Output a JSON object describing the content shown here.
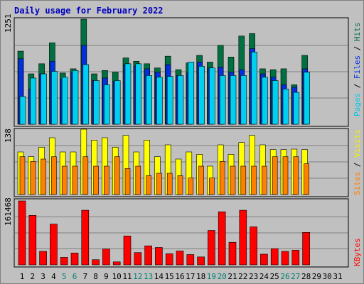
{
  "chart_data": {
    "type": "bar",
    "title": "Daily usage for February 2022",
    "days": [
      "1",
      "2",
      "3",
      "4",
      "5",
      "6",
      "7",
      "8",
      "9",
      "10",
      "11",
      "12",
      "13",
      "14",
      "15",
      "16",
      "17",
      "18",
      "19",
      "20",
      "21",
      "22",
      "23",
      "24",
      "25",
      "26",
      "27",
      "28",
      "29",
      "30",
      "31"
    ],
    "weekend_days": [
      "5",
      "6",
      "12",
      "13",
      "19",
      "20",
      "26",
      "27"
    ],
    "top_panel": {
      "ymax_label": "1251",
      "ymax": 1251,
      "ylabel": {
        "pages": "Pages",
        "files": "Files",
        "hits": "Hits",
        "sep": " / "
      },
      "series": [
        {
          "name": "Hits",
          "color": "#007040",
          "values": [
            870,
            600,
            720,
            970,
            610,
            660,
            1251,
            600,
            640,
            620,
            790,
            750,
            720,
            670,
            810,
            650,
            730,
            820,
            740,
            940,
            800,
            1050,
            1080,
            660,
            650,
            660,
            470,
            820,
            0,
            0,
            0
          ]
        },
        {
          "name": "Files",
          "color": "#0030e0",
          "values": [
            780,
            420,
            600,
            750,
            540,
            620,
            940,
            520,
            550,
            510,
            710,
            690,
            660,
            620,
            710,
            580,
            610,
            740,
            670,
            680,
            620,
            650,
            900,
            600,
            560,
            470,
            440,
            660,
            0,
            0,
            0
          ]
        },
        {
          "name": "Pages",
          "color": "#00d0f0",
          "values": [
            330,
            550,
            600,
            630,
            560,
            640,
            710,
            520,
            470,
            520,
            720,
            720,
            580,
            560,
            570,
            580,
            740,
            690,
            670,
            580,
            580,
            580,
            860,
            560,
            520,
            420,
            380,
            620,
            0,
            0,
            0
          ]
        }
      ]
    },
    "mid_panel": {
      "ymax_label": "138",
      "ymax": 138,
      "ylabel": {
        "sites": "Sites",
        "visits": "Visits",
        "sep": " / "
      },
      "series": [
        {
          "name": "Visits",
          "color": "#ffff00",
          "values": [
            90,
            80,
            100,
            120,
            90,
            90,
            138,
            115,
            120,
            100,
            125,
            90,
            115,
            80,
            105,
            75,
            90,
            85,
            60,
            105,
            85,
            110,
            125,
            105,
            95,
            95,
            96,
            95,
            0,
            0,
            0
          ]
        },
        {
          "name": "Sites",
          "color": "#ff8000",
          "values": [
            80,
            70,
            75,
            80,
            60,
            60,
            80,
            60,
            60,
            80,
            55,
            60,
            40,
            45,
            45,
            40,
            35,
            60,
            35,
            70,
            60,
            60,
            60,
            60,
            80,
            80,
            80,
            65,
            0,
            0,
            0
          ]
        }
      ]
    },
    "bottom_panel": {
      "ymax_label": "161468",
      "ymax": 161468,
      "ylabel": "KBytes",
      "series": [
        {
          "name": "KBytes",
          "color": "#ff0000",
          "values": [
            161468,
            125000,
            34000,
            103000,
            19000,
            30000,
            138000,
            13000,
            40000,
            7500,
            73000,
            31000,
            48000,
            44000,
            28000,
            35000,
            26000,
            20000,
            87000,
            134000,
            57000,
            138000,
            96000,
            27000,
            41000,
            34000,
            37000,
            82000,
            0,
            0,
            0
          ]
        }
      ]
    }
  }
}
